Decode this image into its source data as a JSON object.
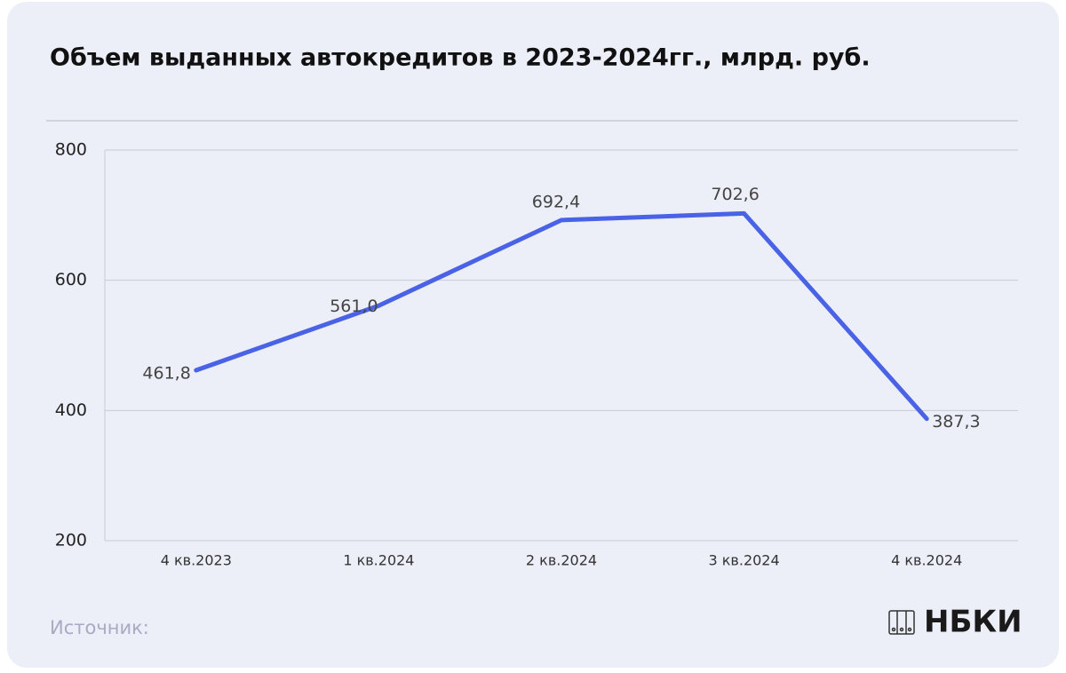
{
  "chart_data": {
    "type": "line",
    "title": "Объем выданных автокредитов в 2023-2024гг., млрд. руб.",
    "categories": [
      "4 кв.2023",
      "1 кв.2024",
      "2 кв.2024",
      "3 кв.2024",
      "4 кв.2024"
    ],
    "values": [
      461.8,
      561.0,
      692.4,
      702.6,
      387.3
    ],
    "value_labels": [
      "461,8",
      "561,0",
      "692,4",
      "702,6",
      "387,3"
    ],
    "color": "#4a63e6",
    "ylim": [
      200,
      800
    ],
    "yticks": [
      200,
      400,
      600,
      800
    ],
    "grid": true
  },
  "source": "Источник:",
  "logo": "НБКИ"
}
